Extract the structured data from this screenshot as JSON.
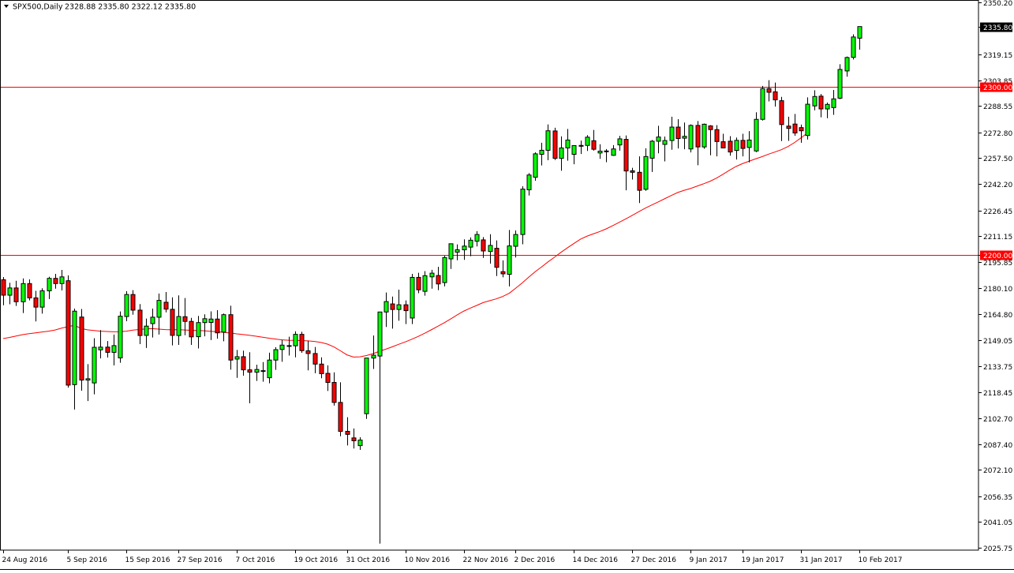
{
  "header": {
    "symbol_label": "SPX500,Daily",
    "ohlc_label": "2328.88 2335.80 2322.12 2335.80"
  },
  "colors": {
    "background": "#ffffff",
    "frame": "#000000",
    "bull": "#00ff00",
    "bear": "#ff0000",
    "wick": "#000000",
    "moving_average": "#ff0000",
    "horizontal_line": "#ff0000",
    "last_price_box": "#000000",
    "level_box": "#ff0000"
  },
  "chart_data": {
    "type": "candlestick",
    "title": "",
    "symbol": "SPX500",
    "timeframe": "Daily",
    "last_price": 2335.8,
    "ylim": [
      2025.75,
      2350.2
    ],
    "yticks": [
      "2350.20",
      "2335.80",
      "2319.15",
      "2303.85",
      "2300.00",
      "2288.55",
      "2272.80",
      "2257.50",
      "2242.20",
      "2226.45",
      "2211.15",
      "2200.00",
      "2195.85",
      "2180.10",
      "2164.80",
      "2149.05",
      "2133.75",
      "2118.45",
      "2102.70",
      "2087.40",
      "2072.10",
      "2056.35",
      "2041.05",
      "2025.75"
    ],
    "xtick_labels": [
      "24 Aug 2016",
      "5 Sep 2016",
      "15 Sep 2016",
      "27 Sep 2016",
      "7 Oct 2016",
      "19 Oct 2016",
      "31 Oct 2016",
      "10 Nov 2016",
      "22 Nov 2016",
      "2 Dec 2016",
      "14 Dec 2016",
      "27 Dec 2016",
      "9 Jan 2017",
      "19 Jan 2017",
      "31 Jan 2017",
      "10 Feb 2017"
    ],
    "xtick_indices": [
      0,
      10,
      19,
      27,
      36,
      45,
      53,
      62,
      71,
      79,
      88,
      97,
      106,
      114,
      123,
      132
    ],
    "horizontal_levels": [
      {
        "value": 2300.0,
        "label": "2300.00"
      },
      {
        "value": 2200.0,
        "label": "2200.00"
      }
    ],
    "moving_average": [
      2150.2,
      2150.9,
      2151.7,
      2152.5,
      2153.1,
      2153.6,
      2154.1,
      2154.6,
      2155.3,
      2156.4,
      2157.3,
      2158.1,
      2156.2,
      2155.4,
      2155.0,
      2154.6,
      2154.4,
      2154.2,
      2154.3,
      2154.6,
      2155.2,
      2155.6,
      2155.9,
      2156.1,
      2155.8,
      2155.5,
      2155.4,
      2155.5,
      2155.3,
      2155.1,
      2155.0,
      2154.8,
      2154.5,
      2154.2,
      2153.9,
      2153.5,
      2153.0,
      2152.6,
      2152.1,
      2151.6,
      2151.0,
      2150.4,
      2149.9,
      2149.4,
      2149.2,
      2149.1,
      2149.0,
      2148.8,
      2148.5,
      2147.9,
      2146.9,
      2145.2,
      2142.9,
      2140.5,
      2139.2,
      2139.3,
      2140.1,
      2141.2,
      2142.6,
      2143.9,
      2145.3,
      2146.8,
      2148.2,
      2149.8,
      2151.5,
      2153.4,
      2155.4,
      2157.5,
      2159.6,
      2161.9,
      2164.3,
      2166.5,
      2168.3,
      2169.9,
      2171.6,
      2172.7,
      2173.8,
      2175.2,
      2177.1,
      2180.1,
      2183.2,
      2186.6,
      2189.9,
      2192.8,
      2195.8,
      2198.6,
      2201.5,
      2204.2,
      2206.8,
      2209.3,
      2211.1,
      2212.5,
      2213.9,
      2215.5,
      2217.4,
      2219.4,
      2221.4,
      2223.5,
      2225.7,
      2227.8,
      2229.7,
      2231.5,
      2233.4,
      2235.3,
      2237.1,
      2238.4,
      2239.5,
      2240.9,
      2242.3,
      2243.8,
      2245.7,
      2248.0,
      2250.4,
      2252.6,
      2254.3,
      2255.7,
      2257.1,
      2258.4,
      2259.9,
      2261.2,
      2262.6,
      2264.4,
      2266.8,
      2269.6,
      2272.5
    ],
    "ohlc": [
      [
        2185.2,
        2186.8,
        2170.0,
        2176.0
      ],
      [
        2176.0,
        2183.4,
        2170.6,
        2180.3
      ],
      [
        2180.3,
        2184.6,
        2169.6,
        2172.1
      ],
      [
        2172.1,
        2186.0,
        2165.4,
        2182.9
      ],
      [
        2182.9,
        2185.4,
        2172.9,
        2174.4
      ],
      [
        2174.4,
        2178.6,
        2160.4,
        2168.9
      ],
      [
        2168.9,
        2180.1,
        2165.0,
        2178.6
      ],
      [
        2178.6,
        2187.0,
        2173.7,
        2186.0
      ],
      [
        2186.0,
        2188.7,
        2179.9,
        2182.9
      ],
      [
        2182.9,
        2191.0,
        2178.8,
        2186.9
      ],
      [
        2184.6,
        2187.8,
        2121.0,
        2122.5
      ],
      [
        2122.8,
        2168.0,
        2108.0,
        2166.5
      ],
      [
        2163.0,
        2167.8,
        2119.2,
        2125.5
      ],
      [
        2125.5,
        2135.0,
        2113.0,
        2126.3
      ],
      [
        2123.8,
        2150.4,
        2117.0,
        2145.0
      ],
      [
        2143.5,
        2155.2,
        2138.4,
        2145.1
      ],
      [
        2145.1,
        2148.7,
        2138.9,
        2142.0
      ],
      [
        2142.0,
        2152.6,
        2134.2,
        2146.0
      ],
      [
        2138.7,
        2166.3,
        2135.8,
        2163.5
      ],
      [
        2163.3,
        2178.4,
        2160.5,
        2176.4
      ],
      [
        2176.4,
        2179.0,
        2164.4,
        2167.1
      ],
      [
        2167.1,
        2170.7,
        2146.9,
        2152.0
      ],
      [
        2152.1,
        2162.1,
        2144.6,
        2157.6
      ],
      [
        2159.1,
        2168.0,
        2150.8,
        2162.9
      ],
      [
        2162.9,
        2177.0,
        2152.6,
        2172.9
      ],
      [
        2171.8,
        2177.9,
        2165.8,
        2167.7
      ],
      [
        2167.6,
        2174.7,
        2146.1,
        2152.1
      ],
      [
        2152.0,
        2175.9,
        2146.4,
        2163.3
      ],
      [
        2163.2,
        2174.3,
        2152.2,
        2160.4
      ],
      [
        2160.4,
        2162.5,
        2146.4,
        2151.2
      ],
      [
        2151.3,
        2163.7,
        2144.3,
        2159.7
      ],
      [
        2159.7,
        2164.6,
        2151.5,
        2162.0
      ],
      [
        2159.8,
        2166.4,
        2149.3,
        2161.8
      ],
      [
        2161.8,
        2167.1,
        2150.1,
        2153.6
      ],
      [
        2154.0,
        2165.1,
        2148.6,
        2164.4
      ],
      [
        2164.4,
        2169.7,
        2131.7,
        2137.4
      ],
      [
        2138.0,
        2143.4,
        2126.8,
        2139.4
      ],
      [
        2139.4,
        2143.0,
        2128.1,
        2131.6
      ],
      [
        2131.6,
        2142.1,
        2111.7,
        2130.2
      ],
      [
        2130.2,
        2134.6,
        2125.0,
        2131.8
      ],
      [
        2131.1,
        2136.2,
        2124.5,
        2130.9
      ],
      [
        2126.9,
        2141.8,
        2123.6,
        2137.4
      ],
      [
        2137.4,
        2145.1,
        2131.6,
        2143.6
      ],
      [
        2143.7,
        2149.4,
        2136.4,
        2146.3
      ],
      [
        2146.0,
        2151.3,
        2140.1,
        2145.6
      ],
      [
        2145.9,
        2154.5,
        2139.0,
        2152.7
      ],
      [
        2152.7,
        2154.2,
        2141.7,
        2143.0
      ],
      [
        2142.9,
        2148.8,
        2131.3,
        2141.3
      ],
      [
        2141.3,
        2145.2,
        2129.6,
        2135.0
      ],
      [
        2135.0,
        2139.0,
        2126.6,
        2129.3
      ],
      [
        2129.5,
        2134.3,
        2119.0,
        2124.1
      ],
      [
        2124.1,
        2130.1,
        2110.3,
        2112.2
      ],
      [
        2112.2,
        2124.2,
        2092.1,
        2095.0
      ],
      [
        2095.0,
        2103.4,
        2086.6,
        2093.2
      ],
      [
        2091.1,
        2096.7,
        2084.8,
        2089.4
      ],
      [
        2086.5,
        2091.5,
        2084.0,
        2089.8
      ],
      [
        2105.5,
        2138.6,
        2102.4,
        2138.6
      ],
      [
        2138.6,
        2152.0,
        2132.1,
        2140.3
      ],
      [
        2139.8,
        2166.0,
        2028.2,
        2166.0
      ],
      [
        2166.0,
        2177.6,
        2157.1,
        2172.2
      ],
      [
        2170.8,
        2175.2,
        2156.1,
        2167.5
      ],
      [
        2167.5,
        2179.3,
        2160.8,
        2170.3
      ],
      [
        2170.3,
        2172.9,
        2158.8,
        2166.8
      ],
      [
        2162.4,
        2188.7,
        2158.8,
        2186.6
      ],
      [
        2186.6,
        2189.3,
        2177.2,
        2179.2
      ],
      [
        2178.3,
        2190.3,
        2175.7,
        2187.6
      ],
      [
        2186.9,
        2191.1,
        2179.9,
        2189.1
      ],
      [
        2187.7,
        2192.9,
        2179.0,
        2182.7
      ],
      [
        2183.5,
        2199.4,
        2181.2,
        2198.4
      ],
      [
        2197.6,
        2206.7,
        2191.6,
        2206.6
      ],
      [
        2201.6,
        2206.2,
        2196.8,
        2203.0
      ],
      [
        2203.0,
        2209.2,
        2197.0,
        2205.2
      ],
      [
        2204.6,
        2210.4,
        2199.2,
        2208.7
      ],
      [
        2208.1,
        2214.1,
        2205.0,
        2212.1
      ],
      [
        2208.9,
        2210.6,
        2198.2,
        2202.3
      ],
      [
        2202.0,
        2212.3,
        2194.8,
        2205.6
      ],
      [
        2203.9,
        2208.6,
        2187.4,
        2192.6
      ],
      [
        2190.0,
        2196.7,
        2186.6,
        2188.7
      ],
      [
        2188.4,
        2214.8,
        2181.2,
        2205.3
      ],
      [
        2205.1,
        2214.5,
        2198.4,
        2212.1
      ],
      [
        2212.1,
        2240.8,
        2206.3,
        2239.1
      ],
      [
        2238.7,
        2248.6,
        2235.3,
        2247.5
      ],
      [
        2246.2,
        2261.0,
        2244.1,
        2260.1
      ],
      [
        2259.8,
        2266.7,
        2253.2,
        2262.2
      ],
      [
        2262.2,
        2277.6,
        2256.3,
        2273.8
      ],
      [
        2273.7,
        2275.6,
        2256.4,
        2257.4
      ],
      [
        2257.4,
        2270.5,
        2250.0,
        2263.6
      ],
      [
        2263.6,
        2274.9,
        2256.0,
        2268.3
      ],
      [
        2259.8,
        2265.2,
        2253.9,
        2265.0
      ],
      [
        2265.1,
        2268.0,
        2260.0,
        2264.6
      ],
      [
        2265.1,
        2271.2,
        2261.8,
        2270.0
      ],
      [
        2267.9,
        2274.3,
        2262.0,
        2262.8
      ],
      [
        2260.6,
        2265.8,
        2257.1,
        2261.7
      ],
      [
        2261.5,
        2262.9,
        2255.1,
        2261.8
      ],
      [
        2259.2,
        2265.3,
        2258.9,
        2263.0
      ],
      [
        2265.4,
        2270.8,
        2262.0,
        2269.0
      ],
      [
        2268.7,
        2271.0,
        2238.4,
        2249.9
      ],
      [
        2250.0,
        2251.8,
        2244.8,
        2249.1
      ],
      [
        2249.1,
        2258.6,
        2230.8,
        2238.4
      ],
      [
        2239.0,
        2263.4,
        2238.1,
        2258.5
      ],
      [
        2257.5,
        2268.3,
        2249.3,
        2267.6
      ],
      [
        2267.6,
        2276.8,
        2260.4,
        2270.1
      ],
      [
        2265.7,
        2270.4,
        2255.6,
        2268.0
      ],
      [
        2268.0,
        2282.2,
        2262.5,
        2276.0
      ],
      [
        2276.0,
        2280.7,
        2263.3,
        2269.2
      ],
      [
        2269.4,
        2278.7,
        2262.8,
        2270.5
      ],
      [
        2263.0,
        2277.6,
        2260.9,
        2277.0
      ],
      [
        2277.0,
        2279.6,
        2253.3,
        2264.2
      ],
      [
        2264.2,
        2278.1,
        2263.1,
        2277.7
      ],
      [
        2276.7,
        2277.1,
        2259.2,
        2274.5
      ],
      [
        2274.5,
        2277.2,
        2258.6,
        2267.4
      ],
      [
        2267.3,
        2272.0,
        2263.8,
        2263.6
      ],
      [
        2267.6,
        2270.6,
        2259.0,
        2261.2
      ],
      [
        2262.1,
        2269.8,
        2256.7,
        2268.1
      ],
      [
        2268.1,
        2272.0,
        2258.6,
        2263.3
      ],
      [
        2263.9,
        2273.6,
        2255.0,
        2268.3
      ],
      [
        2261.8,
        2284.8,
        2261.1,
        2280.6
      ],
      [
        2280.6,
        2300.5,
        2279.9,
        2298.9
      ],
      [
        2298.9,
        2303.9,
        2291.3,
        2296.7
      ],
      [
        2297.0,
        2302.5,
        2288.2,
        2292.2
      ],
      [
        2291.7,
        2294.0,
        2267.7,
        2277.5
      ],
      [
        2276.6,
        2282.2,
        2267.8,
        2275.2
      ],
      [
        2277.8,
        2283.8,
        2270.8,
        2272.5
      ],
      [
        2275.7,
        2277.5,
        2266.7,
        2273.8
      ],
      [
        2271.0,
        2293.7,
        2268.6,
        2289.6
      ],
      [
        2288.6,
        2297.9,
        2286.0,
        2294.2
      ],
      [
        2294.4,
        2295.7,
        2281.8,
        2286.8
      ],
      [
        2286.8,
        2290.6,
        2281.3,
        2289.5
      ],
      [
        2287.6,
        2298.1,
        2283.3,
        2292.8
      ],
      [
        2293.2,
        2313.4,
        2292.6,
        2310.3
      ],
      [
        2309.4,
        2318.0,
        2306.0,
        2317.4
      ],
      [
        2317.5,
        2331.2,
        2316.2,
        2329.6
      ],
      [
        2328.9,
        2335.8,
        2322.1,
        2335.8
      ]
    ]
  }
}
